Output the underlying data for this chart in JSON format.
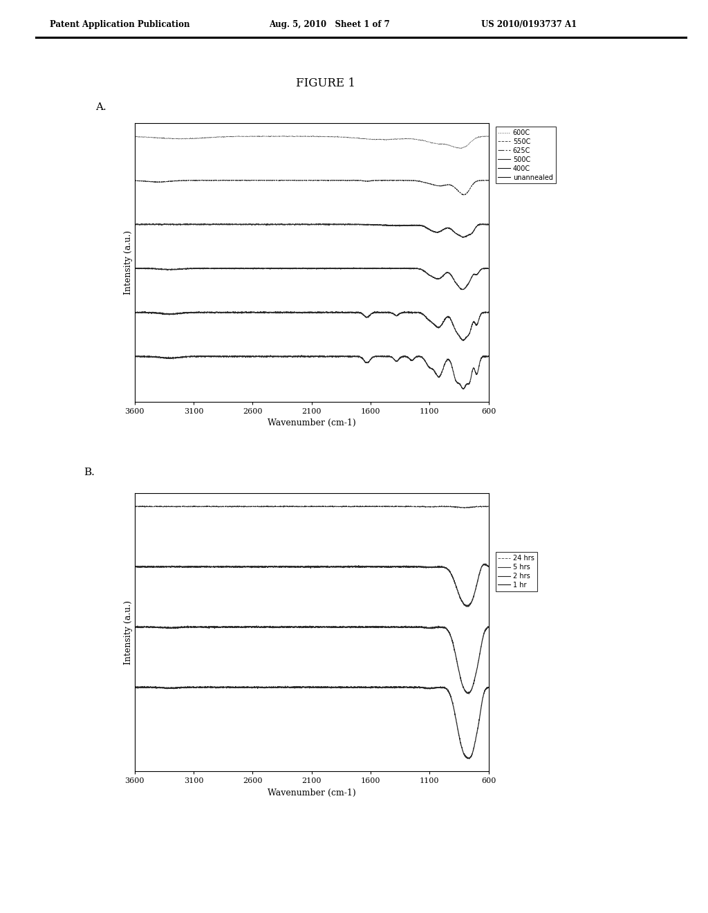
{
  "title": "FIGURE 1",
  "header_left": "Patent Application Publication",
  "header_mid": "Aug. 5, 2010   Sheet 1 of 7",
  "header_right": "US 2010/0193737 A1",
  "panel_A_label": "A.",
  "panel_B_label": "B.",
  "xlabel": "Wavenumber (cm-1)",
  "ylabel": "Intensity (a.u.)",
  "x_ticks": [
    3600,
    3100,
    2600,
    2100,
    1600,
    1100,
    600
  ],
  "legend_A": [
    "600C",
    "550C",
    "625C",
    "500C",
    "400C",
    "unannealed"
  ],
  "legend_B": [
    "24 hrs",
    "5 hrs",
    "2 hrs",
    "1 hr"
  ],
  "background_color": "#ffffff",
  "line_color": "#111111"
}
